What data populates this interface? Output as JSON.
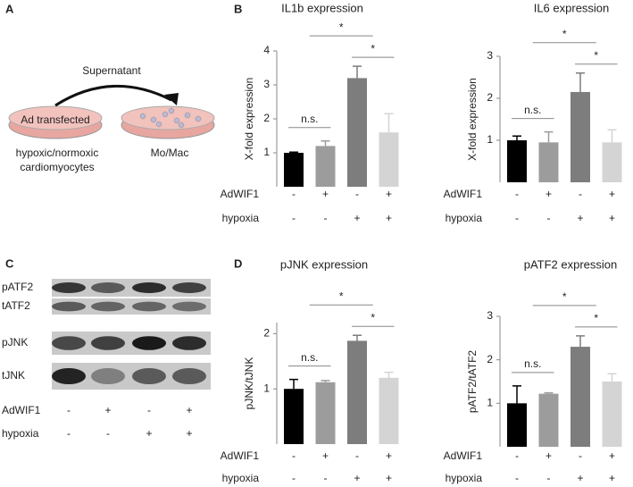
{
  "panels": [
    "A",
    "B",
    "C",
    "D"
  ],
  "panel_a": {
    "arrow_label": "Supernatant",
    "dish_label": "Ad transfected",
    "source_label": [
      "hypoxic/normoxic",
      "cardiomyocytes"
    ],
    "target_label": "Mo/Mac"
  },
  "panel_c": {
    "bands": [
      "pATF2",
      "tATF2",
      "pJNK",
      "tJNK"
    ],
    "rows": [
      {
        "label": "AdWIF1",
        "signs": [
          "-",
          "+",
          "-",
          "+"
        ]
      },
      {
        "label": "hypoxia",
        "signs": [
          "-",
          "-",
          "+",
          "+"
        ]
      }
    ]
  },
  "chart_data": [
    {
      "type": "bar",
      "title": "IL1b expression",
      "ylabel": "X-fold expression",
      "values": [
        1,
        1.2,
        3.2,
        1.6
      ],
      "errors": [
        0.02,
        0.15,
        0.35,
        0.55
      ],
      "colors": [
        "#000000",
        "#9c9c9c",
        "#7d7d7d",
        "#d4d4d4"
      ],
      "ylim": [
        0,
        4
      ],
      "yticks": [
        1,
        2,
        3,
        4
      ],
      "annotations": [
        "n.s.",
        "*",
        "*"
      ],
      "rows": [
        {
          "label": "AdWIF1",
          "signs": [
            "-",
            "+",
            "-",
            "+"
          ]
        },
        {
          "label": "hypoxia",
          "signs": [
            "-",
            "-",
            "+",
            "+"
          ]
        }
      ]
    },
    {
      "type": "bar",
      "title": "IL6 expression",
      "ylabel": "X-fold expression",
      "values": [
        1,
        0.95,
        2.15,
        0.95
      ],
      "errors": [
        0.1,
        0.25,
        0.45,
        0.3
      ],
      "colors": [
        "#000000",
        "#9c9c9c",
        "#7d7d7d",
        "#d4d4d4"
      ],
      "ylim": [
        0,
        3
      ],
      "yticks": [
        1,
        2,
        3
      ],
      "annotations": [
        "n.s.",
        "*",
        "*"
      ],
      "rows": [
        {
          "label": "AdWIF1",
          "signs": [
            "-",
            "+",
            "-",
            "+"
          ]
        },
        {
          "label": "hypoxia",
          "signs": [
            "-",
            "-",
            "+",
            "+"
          ]
        }
      ]
    },
    {
      "type": "bar",
      "title": "pJNK expression",
      "ylabel": "pJNK/tJNK",
      "values": [
        1,
        1.12,
        1.87,
        1.2
      ],
      "errors": [
        0.17,
        0.03,
        0.1,
        0.1
      ],
      "colors": [
        "#000000",
        "#9c9c9c",
        "#7d7d7d",
        "#d4d4d4"
      ],
      "ylim": [
        0,
        2.2
      ],
      "yticks": [
        1,
        2
      ],
      "annotations": [
        "n.s.",
        "*",
        "*"
      ],
      "rows": [
        {
          "label": "AdWIF1",
          "signs": [
            "-",
            "+",
            "-",
            "+"
          ]
        },
        {
          "label": "hypoxia",
          "signs": [
            "-",
            "-",
            "+",
            "+"
          ]
        }
      ]
    },
    {
      "type": "bar",
      "title": "pATF2 expression",
      "ylabel": "pATF2/tATF2",
      "values": [
        1,
        1.22,
        2.3,
        1.5
      ],
      "errors": [
        0.4,
        0.02,
        0.25,
        0.18
      ],
      "colors": [
        "#000000",
        "#9c9c9c",
        "#7d7d7d",
        "#d4d4d4"
      ],
      "ylim": [
        0,
        3
      ],
      "yticks": [
        1,
        2,
        3
      ],
      "annotations": [
        "n.s.",
        "*",
        "*"
      ],
      "rows": [
        {
          "label": "AdWIF1",
          "signs": [
            "-",
            "+",
            "-",
            "+"
          ]
        },
        {
          "label": "hypoxia",
          "signs": [
            "-",
            "-",
            "+",
            "+"
          ]
        }
      ]
    }
  ]
}
